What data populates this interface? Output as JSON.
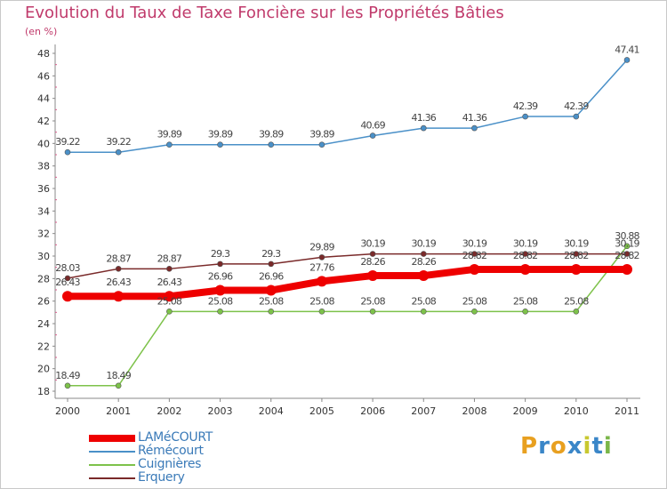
{
  "title": "Evolution du Taux de Taxe Foncière sur les Propriétés Bâties",
  "subtitle": "(en %)",
  "brand": {
    "letters": [
      "P",
      "r",
      "o",
      "x",
      "i",
      "t",
      "i"
    ],
    "colors": [
      "#e8a020",
      "#3a86c8",
      "#e8a020",
      "#3a86c8",
      "#c8c830",
      "#3a86c8",
      "#7ab648"
    ]
  },
  "chart_data": {
    "type": "line",
    "title": "Evolution du Taux de Taxe Foncière sur les Propriétés Bâties",
    "ylabel": "(en %)",
    "xlabel": "",
    "x": [
      "2000",
      "2001",
      "2002",
      "2003",
      "2004",
      "2005",
      "2006",
      "2007",
      "2008",
      "2009",
      "2010",
      "2011"
    ],
    "ylim": [
      18,
      48
    ],
    "yticks": [
      "18",
      "20",
      "22",
      "24",
      "26",
      "28",
      "30",
      "32",
      "34",
      "36",
      "38",
      "40",
      "42",
      "44",
      "46",
      "48"
    ],
    "grid": false,
    "legend_position": "bottom-left",
    "series": [
      {
        "name": "LAMéCOURT",
        "color": "#ee0000",
        "values": [
          26.43,
          26.43,
          26.43,
          26.96,
          26.96,
          27.76,
          28.26,
          28.26,
          28.82,
          28.82,
          28.82,
          28.82
        ],
        "labels": [
          "26.43",
          "26.43",
          "26.43",
          "26.96",
          "26.96",
          "27.76",
          "28.26",
          "28.26",
          "28.82",
          "28.82",
          "28.82",
          "28.82"
        ]
      },
      {
        "name": "Rémécourt",
        "color": "#4a90c8",
        "values": [
          39.22,
          39.22,
          39.89,
          39.89,
          39.89,
          39.89,
          40.69,
          41.36,
          41.36,
          42.39,
          42.39,
          47.41
        ],
        "labels": [
          "39.22",
          "39.22",
          "39.89",
          "39.89",
          "39.89",
          "39.89",
          "40.69",
          "41.36",
          "41.36",
          "42.39",
          "42.39",
          "47.41"
        ]
      },
      {
        "name": "Cuignières",
        "color": "#7dc24a",
        "values": [
          18.49,
          18.49,
          25.08,
          25.08,
          25.08,
          25.08,
          25.08,
          25.08,
          25.08,
          25.08,
          25.08,
          30.88
        ],
        "labels": [
          "18.49",
          "18.49",
          "25.08",
          "25.08",
          "25.08",
          "25.08",
          "25.08",
          "25.08",
          "25.08",
          "25.08",
          "25.08",
          "30.88"
        ]
      },
      {
        "name": "Erquery",
        "color": "#7a2a2a",
        "values": [
          28.03,
          28.87,
          28.87,
          29.3,
          29.3,
          29.89,
          30.19,
          30.19,
          30.19,
          30.19,
          30.19,
          30.19
        ],
        "labels": [
          "28.03",
          "28.87",
          "28.87",
          "29.3",
          "29.3",
          "29.89",
          "30.19",
          "30.19",
          "30.19",
          "30.19",
          "30.19",
          "30.19"
        ]
      }
    ]
  }
}
